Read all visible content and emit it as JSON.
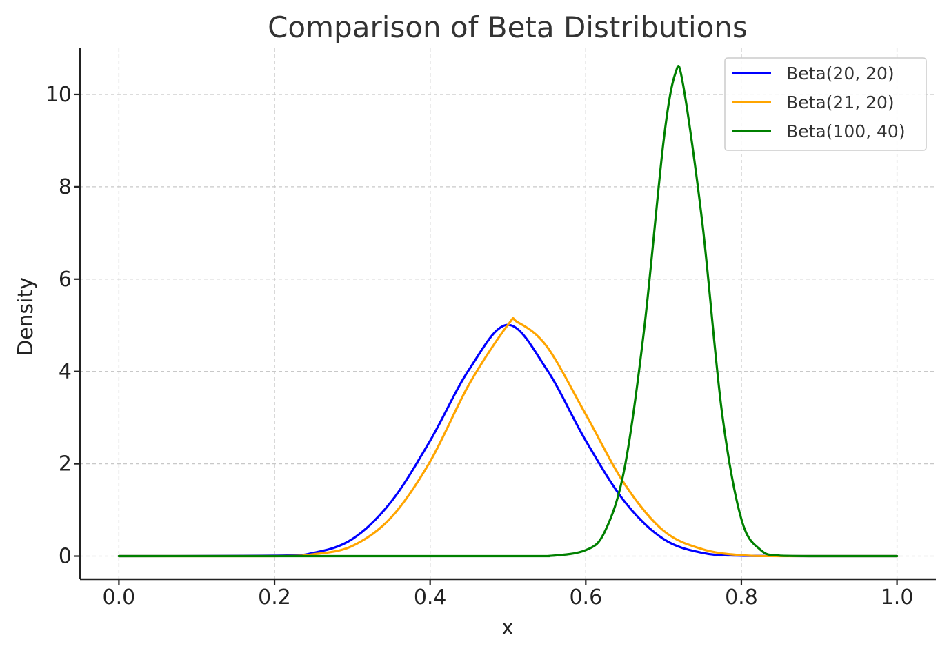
{
  "chart_data": {
    "type": "line",
    "title": "Comparison of Beta Distributions",
    "xlabel": "x",
    "ylabel": "Density",
    "xlim": [
      -0.05,
      1.05
    ],
    "ylim": [
      -0.5,
      11.0
    ],
    "xticks": [
      0.0,
      0.2,
      0.4,
      0.6,
      0.8,
      1.0
    ],
    "xtick_labels": [
      "0.0",
      "0.2",
      "0.4",
      "0.6",
      "0.8",
      "1.0"
    ],
    "yticks": [
      0,
      2,
      4,
      6,
      8,
      10
    ],
    "ytick_labels": [
      "0",
      "2",
      "4",
      "6",
      "8",
      "10"
    ],
    "grid": true,
    "legend_position": "top-right",
    "series": [
      {
        "name": "Beta(20, 20)",
        "color": "#0000ff",
        "x": [
          0.0,
          0.2,
          0.25,
          0.3,
          0.35,
          0.4,
          0.45,
          0.5,
          0.55,
          0.6,
          0.65,
          0.7,
          0.75,
          0.8,
          0.9,
          1.0
        ],
        "y": [
          0.0,
          0.01,
          0.07,
          0.37,
          1.18,
          2.5,
          4.04,
          5.01,
          4.04,
          2.5,
          1.18,
          0.37,
          0.07,
          0.01,
          0.0,
          0.0
        ]
      },
      {
        "name": "Beta(21, 20)",
        "color": "#ffa500",
        "x": [
          0.0,
          0.2,
          0.25,
          0.3,
          0.35,
          0.4,
          0.45,
          0.5,
          0.512,
          0.55,
          0.6,
          0.65,
          0.7,
          0.75,
          0.8,
          0.85,
          1.0
        ],
        "y": [
          0.0,
          0.0,
          0.04,
          0.22,
          0.84,
          2.05,
          3.72,
          5.01,
          5.07,
          4.54,
          3.07,
          1.56,
          0.55,
          0.15,
          0.02,
          0.0,
          0.0
        ]
      },
      {
        "name": "Beta(100, 40)",
        "color": "#008000",
        "x": [
          0.0,
          0.5,
          0.55,
          0.6,
          0.625,
          0.65,
          0.675,
          0.7,
          0.715,
          0.725,
          0.75,
          0.775,
          0.8,
          0.825,
          0.85,
          0.9,
          1.0
        ],
        "y": [
          0.0,
          0.0,
          0.0,
          0.13,
          0.55,
          1.92,
          4.91,
          8.99,
          10.45,
          10.22,
          7.19,
          3.12,
          0.8,
          0.13,
          0.01,
          0.0,
          0.0
        ]
      }
    ]
  }
}
